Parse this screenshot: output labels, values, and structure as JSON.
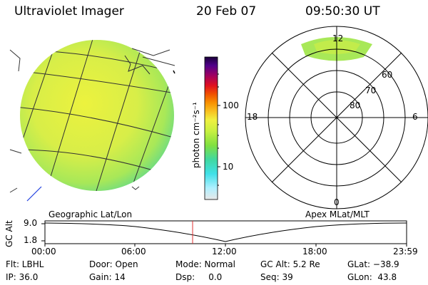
{
  "header": {
    "instrument": "Ultraviolet Imager",
    "date": "20 Feb 07",
    "time": "09:50:30 UT"
  },
  "colorbar": {
    "unit_label": "photon cm⁻²s⁻¹",
    "tick_labels": [
      "100",
      "10"
    ],
    "stops": [
      "#e8e8e8",
      "#b0f0ff",
      "#40e0e8",
      "#40d8a0",
      "#80e040",
      "#c8f040",
      "#f0f040",
      "#f8c020",
      "#f89000",
      "#f05000",
      "#e01020",
      "#a00060",
      "#50008a",
      "#1a003a"
    ]
  },
  "geo_panel": {
    "label": "Geographic Lat/Lon",
    "colors": {
      "bright": "#e8f040",
      "mid": "#c0e850",
      "edge": "#60d890"
    }
  },
  "polar_panel": {
    "label": "Apex MLat/MLT",
    "mlt_labels": {
      "top": "12",
      "left": "18",
      "right": "6",
      "bottom": "0"
    },
    "mlat_labels": [
      "60",
      "70",
      "80"
    ]
  },
  "altitude_plot": {
    "ylabel": "GC Alt",
    "yticks": [
      "9.0",
      "1.8"
    ],
    "xticks": [
      "00:00",
      "06:00",
      "12:00",
      "18:00",
      "23:59"
    ],
    "marker_time": "09:50:30",
    "marker_color": "#e03030"
  },
  "footer": {
    "row1": {
      "flt": "Flt: LBHL",
      "door": "Door: Open",
      "mode": "Mode: Normal",
      "gcalt": "GC Alt: 5.2 Re",
      "glat": "GLat: −38.9"
    },
    "row2": {
      "ip": "IP: 36.0",
      "gain": "Gain: 14",
      "dsp": "Dsp:     0.0",
      "seq": "Seq: 39",
      "glon": "GLon:  43.8"
    }
  }
}
